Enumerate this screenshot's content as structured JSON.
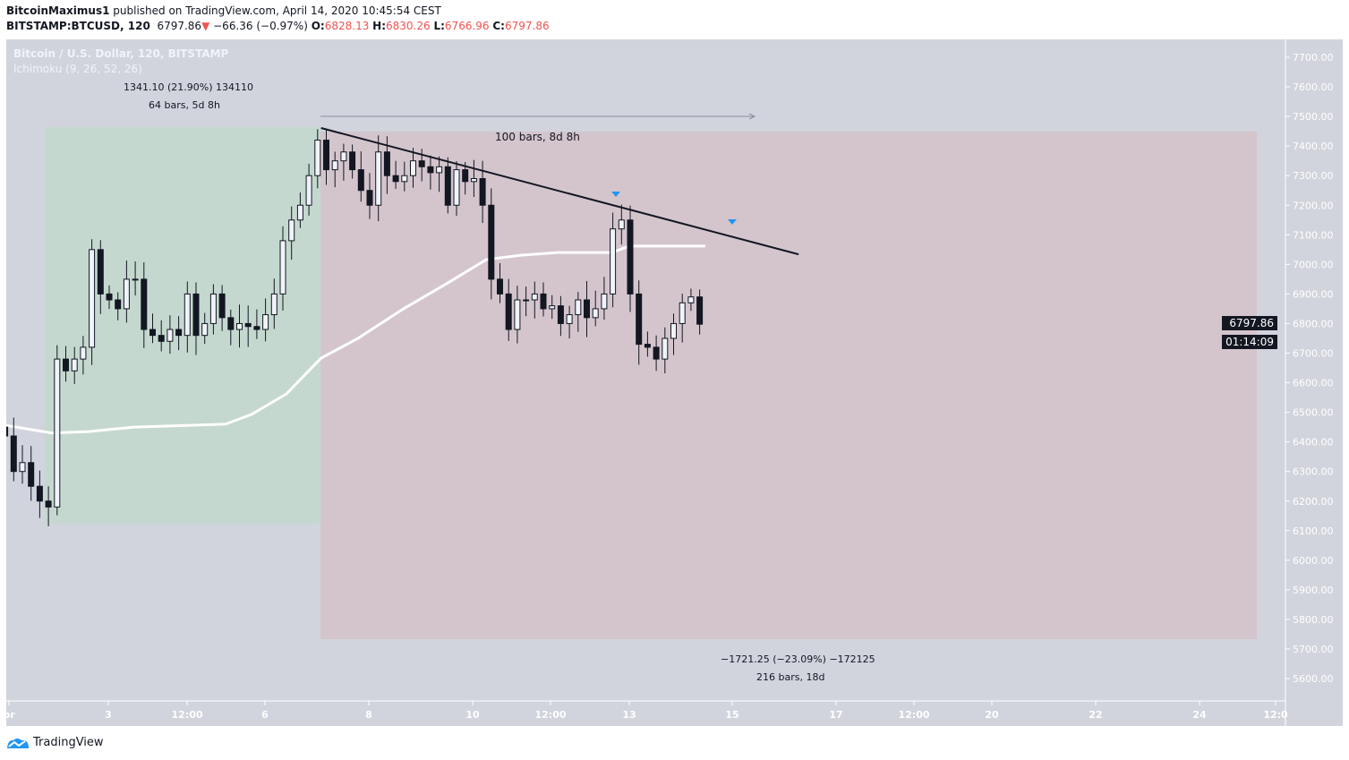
{
  "header": {
    "author": "BitcoinMaximus1",
    "published": "published on TradingView.com, April 14, 2020 10:45:54 CEST",
    "symbol": "BITSTAMP:BTCUSD, 120",
    "last": "6797.86",
    "arrow": "▼",
    "change": "−66.36 (−0.97%)",
    "o_label": "O:",
    "o": "6828.13",
    "h_label": "H:",
    "h": "6830.26",
    "l_label": "L:",
    "l": "6766.96",
    "c_label": "C:",
    "c": "6797.86"
  },
  "legend": {
    "title": "Bitcoin / U.S. Dollar, 120, BITSTAMP",
    "indicator": "Ichimoku (9, 26, 52, 26)"
  },
  "annotations": {
    "up_range": "1341.10 (21.90%) 134110",
    "up_bars": "64 bars, 5d 8h",
    "trend_bars": "100 bars, 8d 8h",
    "down_range": "−1721.25 (−23.09%) −172125",
    "down_bars": "216 bars, 18d"
  },
  "price_tag": "6797.86",
  "countdown": "01:14:09",
  "brand": "TradingView",
  "colors": {
    "background": "#d1d4dc",
    "long_zone": "#c5d8cf",
    "short_zone": "#d4c5cd",
    "candle": "#131722",
    "ma": "#ffffff",
    "arrow": "#2196f3",
    "down": "#ef5350"
  },
  "chart_data": {
    "type": "candlestick",
    "interval": "4h (approx.)",
    "start": "2020-04-01 00:00",
    "closes": [
      6420,
      6300,
      6330,
      6250,
      6200,
      6180,
      6680,
      6640,
      6680,
      6720,
      7050,
      6900,
      6880,
      6850,
      6950,
      6950,
      6780,
      6760,
      6740,
      6780,
      6760,
      6900,
      6760,
      6800,
      6900,
      6820,
      6780,
      6800,
      6790,
      6780,
      6830,
      6900,
      7080,
      7150,
      7200,
      7300,
      7420,
      7320,
      7350,
      7380,
      7320,
      7250,
      7200,
      7380,
      7300,
      7280,
      7300,
      7350,
      7330,
      7310,
      7330,
      7200,
      7320,
      7280,
      7290,
      7200,
      6950,
      6900,
      6780,
      6880,
      6880,
      6900,
      6850,
      6860,
      6800,
      6830,
      6880,
      6820,
      6850,
      6900,
      7120,
      7150,
      6900,
      6730,
      6720,
      6680,
      6750,
      6800,
      6870,
      6890,
      6797.86
    ],
    "ma_line": [
      [
        "2020-04-01 00:00",
        6457
      ],
      [
        "2020-04-01 22:00",
        6430
      ],
      [
        "2020-04-02 15:00",
        6435
      ],
      [
        "2020-04-03 12:00",
        6450
      ],
      [
        "2020-04-04 09:00",
        6455
      ],
      [
        "2020-04-05 06:00",
        6460
      ],
      [
        "2020-04-05 18:00",
        6493
      ],
      [
        "2020-04-06 10:00",
        6562
      ],
      [
        "2020-04-07 02:00",
        6683
      ],
      [
        "2020-04-07 19:00",
        6750
      ],
      [
        "2020-04-08 16:00",
        6850
      ],
      [
        "2020-04-09 13:00",
        6940
      ],
      [
        "2020-04-10 06:00",
        7016
      ],
      [
        "2020-04-10 22:00",
        7031
      ],
      [
        "2020-04-11 15:00",
        7040
      ],
      [
        "2020-04-12 16:00",
        7040
      ],
      [
        "2020-04-13 00:00",
        7062
      ],
      [
        "2020-04-14 11:00",
        7062
      ]
    ],
    "trendline": [
      [
        "2020-04-07 02:00",
        7461
      ],
      [
        "2020-04-16 06:00",
        7034
      ]
    ],
    "y_ticks": [
      "7700.00",
      "7600.00",
      "7500.00",
      "7400.00",
      "7300.00",
      "7200.00",
      "7100.00",
      "7000.00",
      "6900.00",
      "6800.00",
      "6700.00",
      "6600.00",
      "6500.00",
      "6400.00",
      "6300.00",
      "6200.00",
      "6100.00",
      "6000.00",
      "5900.00",
      "5800.00",
      "5700.00",
      "5600.00"
    ],
    "ylim": [
      5600,
      7700
    ],
    "x_ticks": [
      "pr",
      "3",
      "12:00",
      "6",
      "8",
      "10",
      "12:00",
      "13",
      "15",
      "17",
      "12:00",
      "20",
      "22",
      "24",
      "12:0"
    ]
  }
}
